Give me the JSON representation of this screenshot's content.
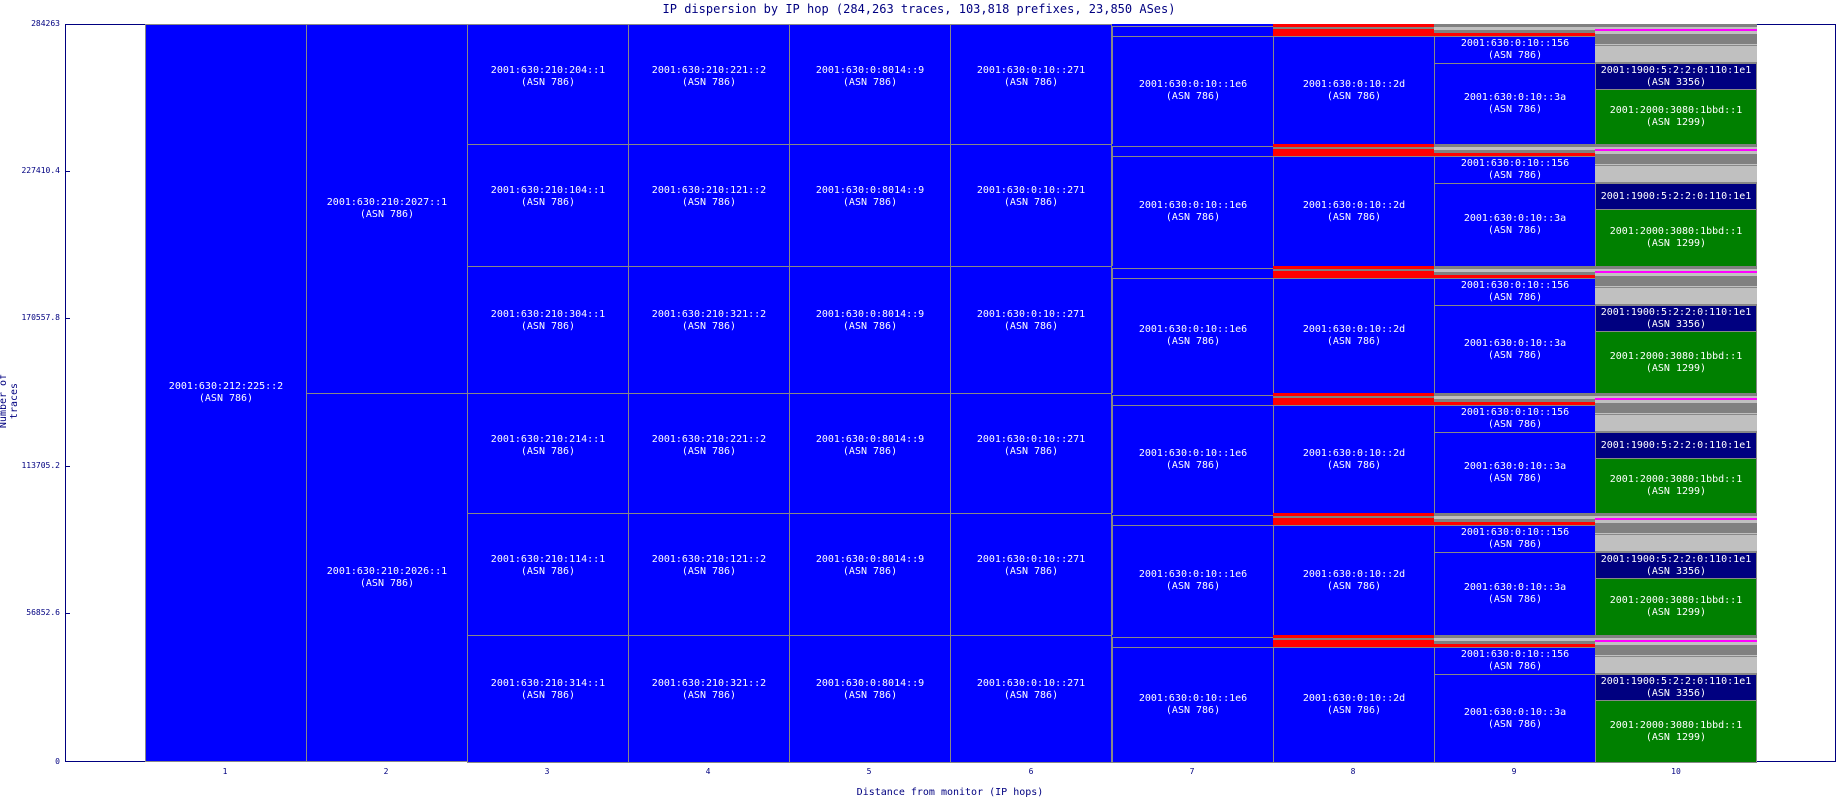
{
  "chart_data": {
    "type": "treemap-bar",
    "title": "IP dispersion by IP hop (284,263 traces, 103,818 prefixes, 23,850 ASes)",
    "xlabel": "Distance from monitor (IP hops)",
    "ylabel": "Number of traces",
    "ylim": [
      0,
      284263
    ],
    "yticks": [
      "284263",
      "227410.4",
      "170557.8",
      "113705.2",
      "56852.6",
      "0"
    ],
    "xticks": [
      "1",
      "2",
      "3",
      "4",
      "5",
      "6",
      "7",
      "8",
      "9",
      "10"
    ],
    "colors": {
      "asn786": "#0000ff",
      "asn3356": "#000080",
      "asn1299": "#008000",
      "other_red": "#ff0000",
      "other_gray": "#808080",
      "light_gray": "#c0c0c0",
      "magenta": "#ff00ff",
      "border": "#888888"
    },
    "hop1": {
      "ip": "2001:630:212:225::2",
      "asn": "(ASN 786)"
    },
    "hop2": [
      {
        "ip": "2001:630:210:2027::1",
        "asn": "(ASN 786)"
      },
      {
        "ip": "2001:630:210:2026::1",
        "asn": "(ASN 786)"
      }
    ],
    "groups": [
      {
        "hop3": "2001:630:210:204::1",
        "hop4": "2001:630:210:221::2",
        "hop5": "2001:630:0:8014::9",
        "hop6": "2001:630:0:10::271",
        "hop7": "2001:630:0:10::1e6",
        "hop8": "2001:630:0:10::2d",
        "hop9a": "2001:630:0:10::156",
        "hop9b": "2001:630:0:10::3a",
        "hop10a": "2001:1900:5:2:2:0:110:1e1",
        "hop10a_asn": "(ASN 3356)",
        "hop10b": "2001:2000:3080:1bbd::1",
        "hop10b_asn": "(ASN 1299)"
      },
      {
        "hop3": "2001:630:210:104::1",
        "hop4": "2001:630:210:121::2",
        "hop5": "2001:630:0:8014::9",
        "hop6": "2001:630:0:10::271",
        "hop7": "2001:630:0:10::1e6",
        "hop8": "2001:630:0:10::2d",
        "hop9a": "2001:630:0:10::156",
        "hop9b": "2001:630:0:10::3a",
        "hop10a": "2001:1900:5:2:2:0:110:1e1",
        "hop10a_asn": "",
        "hop10b": "2001:2000:3080:1bbd::1",
        "hop10b_asn": "(ASN 1299)"
      },
      {
        "hop3": "2001:630:210:304::1",
        "hop4": "2001:630:210:321::2",
        "hop5": "2001:630:0:8014::9",
        "hop6": "2001:630:0:10::271",
        "hop7": "2001:630:0:10::1e6",
        "hop8": "2001:630:0:10::2d",
        "hop9a": "2001:630:0:10::156",
        "hop9b": "2001:630:0:10::3a",
        "hop10a": "2001:1900:5:2:2:0:110:1e1",
        "hop10a_asn": "(ASN 3356)",
        "hop10b": "2001:2000:3080:1bbd::1",
        "hop10b_asn": "(ASN 1299)"
      },
      {
        "hop3": "2001:630:210:214::1",
        "hop4": "2001:630:210:221::2",
        "hop5": "2001:630:0:8014::9",
        "hop6": "2001:630:0:10::271",
        "hop7": "2001:630:0:10::1e6",
        "hop8": "2001:630:0:10::2d",
        "hop9a": "2001:630:0:10::156",
        "hop9b": "2001:630:0:10::3a",
        "hop10a": "2001:1900:5:2:2:0:110:1e1",
        "hop10a_asn": "",
        "hop10b": "2001:2000:3080:1bbd::1",
        "hop10b_asn": "(ASN 1299)"
      },
      {
        "hop3": "2001:630:210:114::1",
        "hop4": "2001:630:210:121::2",
        "hop5": "2001:630:0:8014::9",
        "hop6": "2001:630:0:10::271",
        "hop7": "2001:630:0:10::1e6",
        "hop8": "2001:630:0:10::2d",
        "hop9a": "2001:630:0:10::156",
        "hop9b": "2001:630:0:10::3a",
        "hop10a": "2001:1900:5:2:2:0:110:1e1",
        "hop10a_asn": "(ASN 3356)",
        "hop10b": "2001:2000:3080:1bbd::1",
        "hop10b_asn": "(ASN 1299)"
      },
      {
        "hop3": "2001:630:210:314::1",
        "hop4": "2001:630:210:321::2",
        "hop5": "2001:630:0:8014::9",
        "hop6": "2001:630:0:10::271",
        "hop7": "2001:630:0:10::1e6",
        "hop8": "2001:630:0:10::2d",
        "hop9a": "2001:630:0:10::156",
        "hop9b": "2001:630:0:10::3a",
        "hop10a": "2001:1900:5:2:2:0:110:1e1",
        "hop10a_asn": "(ASN 3356)",
        "hop10b": "2001:2000:3080:1bbd::1",
        "hop10b_asn": "(ASN 1299)"
      }
    ],
    "asn786_label": "(ASN 786)"
  }
}
